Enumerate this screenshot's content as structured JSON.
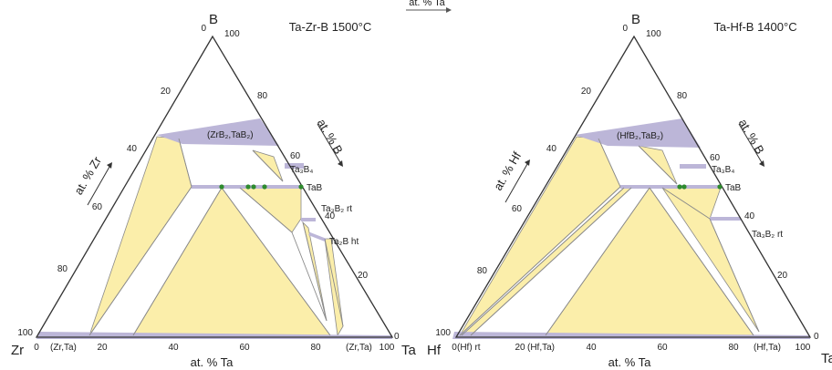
{
  "top_fragment": "at. % Ta",
  "colors": {
    "two_phase": "#fbeeaa",
    "solid_solution": "#bcb6d8",
    "frame": "#333333",
    "tie": "#8a8a8a",
    "point": "#2e8b2e"
  },
  "diagrams": [
    {
      "title": "Ta-Zr-B 1500°C",
      "apex_top": "B",
      "apex_left": "Zr",
      "apex_right": "Ta",
      "axis_bottom": "at. % Ta",
      "axis_left": "at. % Zr",
      "axis_right": "at. % B",
      "ticks_bottom": [
        "0",
        "20",
        "40",
        "60",
        "80",
        "100"
      ],
      "ticks_left": [
        "0",
        "20",
        "40",
        "60",
        "80",
        "100"
      ],
      "ticks_right": [
        "100",
        "80",
        "60",
        "40",
        "20",
        "0"
      ],
      "phase_labels": {
        "diboride": "(ZrB₂,TaB₂)",
        "ta3b4": "Ta₃B₄",
        "tab": "TaB",
        "ta3b2": "Ta₃B₂ rt",
        "ta2b": "Ta₂B ht",
        "ss_left": "(Zr,Ta)",
        "ss_right": "(Zr,Ta)"
      }
    },
    {
      "title": "Ta-Hf-B 1400°C",
      "apex_top": "B",
      "apex_left": "Hf",
      "apex_right": "Ta",
      "axis_bottom": "at. % Ta",
      "axis_left": "at. % Hf",
      "axis_right": "at. % B",
      "ticks_bottom": [
        "0",
        "20",
        "40",
        "60",
        "80",
        "100"
      ],
      "ticks_left": [
        "0",
        "20",
        "40",
        "60",
        "80",
        "100"
      ],
      "ticks_right": [
        "100",
        "80",
        "60",
        "40",
        "20",
        "0"
      ],
      "phase_labels": {
        "diboride": "(HfB₂,TaB₂)",
        "ta3b4": "Ta₃B₄",
        "tab": "TaB",
        "ta3b2": "Ta₃B₂ rt",
        "ss_left": "(Hf) rt",
        "ss_mid": "(Hf,Ta)",
        "ss_right": "(Hf,Ta)"
      }
    }
  ]
}
